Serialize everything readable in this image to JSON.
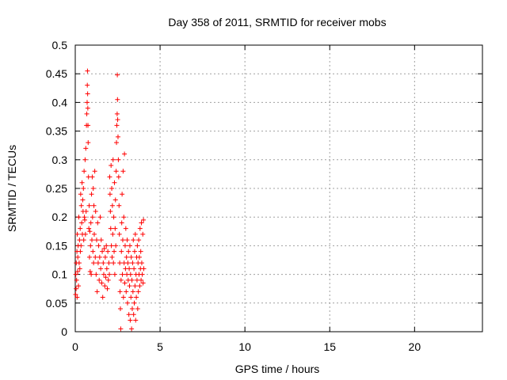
{
  "chart_data": {
    "type": "scatter",
    "title": "Day 358 of 2011, SRMTID for receiver mobs",
    "xlabel": "GPS time / hours",
    "ylabel": "SRMTID / TECUs",
    "xlim": [
      0,
      24
    ],
    "ylim": [
      0,
      0.5
    ],
    "x_ticks": [
      0,
      5,
      10,
      15,
      20
    ],
    "y_ticks": [
      0,
      0.05,
      0.1,
      0.15,
      0.2,
      0.25,
      0.3,
      0.35,
      0.4,
      0.45,
      0.5
    ],
    "x_tick_labels": [
      "0",
      "5",
      "10",
      "15",
      "20"
    ],
    "y_tick_labels": [
      "0",
      "0.05",
      "0.1",
      "0.15",
      "0.2",
      "0.25",
      "0.3",
      "0.35",
      "0.4",
      "0.45",
      "0.5"
    ],
    "grid": true,
    "marker": "+",
    "color": "#ff0000",
    "series": [
      {
        "points": [
          [
            0.02,
            0.065
          ],
          [
            0.03,
            0.1
          ],
          [
            0.05,
            0.075
          ],
          [
            0.06,
            0.12
          ],
          [
            0.08,
            0.09
          ],
          [
            0.1,
            0.14
          ],
          [
            0.11,
            0.06
          ],
          [
            0.12,
            0.17
          ],
          [
            0.14,
            0.105
          ],
          [
            0.15,
            0.13
          ],
          [
            0.17,
            0.15
          ],
          [
            0.19,
            0.08
          ],
          [
            0.21,
            0.2
          ],
          [
            0.23,
            0.12
          ],
          [
            0.25,
            0.16
          ],
          [
            0.27,
            0.11
          ],
          [
            0.29,
            0.18
          ],
          [
            0.3,
            0.14
          ],
          [
            0.32,
            0.24
          ],
          [
            0.34,
            0.15
          ],
          [
            0.36,
            0.22
          ],
          [
            0.38,
            0.19
          ],
          [
            0.4,
            0.26
          ],
          [
            0.42,
            0.17
          ],
          [
            0.44,
            0.23
          ],
          [
            0.46,
            0.21
          ],
          [
            0.48,
            0.25
          ],
          [
            0.5,
            0.16
          ],
          [
            0.52,
            0.28
          ],
          [
            0.54,
            0.2
          ],
          [
            0.56,
            0.195
          ],
          [
            0.58,
            0.3
          ],
          [
            0.6,
            0.17
          ],
          [
            0.62,
            0.32
          ],
          [
            0.64,
            0.21
          ],
          [
            0.66,
            0.36
          ],
          [
            0.68,
            0.38
          ],
          [
            0.7,
            0.4
          ],
          [
            0.71,
            0.43
          ],
          [
            0.72,
            0.455
          ],
          [
            0.73,
            0.415
          ],
          [
            0.74,
            0.39
          ],
          [
            0.75,
            0.36
          ],
          [
            0.76,
            0.33
          ],
          [
            0.78,
            0.27
          ],
          [
            0.8,
            0.18
          ],
          [
            0.82,
            0.22
          ],
          [
            0.84,
            0.13
          ],
          [
            0.86,
            0.175
          ],
          [
            0.88,
            0.105
          ],
          [
            0.9,
            0.15
          ],
          [
            0.92,
            0.19
          ],
          [
            0.94,
            0.1
          ],
          [
            0.96,
            0.24
          ],
          [
            0.98,
            0.16
          ],
          [
            1.0,
            0.27
          ],
          [
            1.02,
            0.2
          ],
          [
            1.04,
            0.14
          ],
          [
            1.06,
            0.25
          ],
          [
            1.08,
            0.12
          ],
          [
            1.1,
            0.22
          ],
          [
            1.12,
            0.17
          ],
          [
            1.15,
            0.28
          ],
          [
            1.18,
            0.13
          ],
          [
            1.2,
            0.21
          ],
          [
            1.23,
            0.1
          ],
          [
            1.26,
            0.16
          ],
          [
            1.29,
            0.07
          ],
          [
            1.32,
            0.19
          ],
          [
            1.35,
            0.12
          ],
          [
            1.38,
            0.15
          ],
          [
            1.41,
            0.09
          ],
          [
            1.44,
            0.13
          ],
          [
            1.47,
            0.2
          ],
          [
            1.5,
            0.11
          ],
          [
            1.53,
            0.16
          ],
          [
            1.56,
            0.085
          ],
          [
            1.59,
            0.14
          ],
          [
            1.62,
            0.06
          ],
          [
            1.65,
            0.12
          ],
          [
            1.68,
            0.1
          ],
          [
            1.71,
            0.145
          ],
          [
            1.74,
            0.08
          ],
          [
            1.77,
            0.13
          ],
          [
            1.8,
            0.095
          ],
          [
            1.83,
            0.15
          ],
          [
            1.86,
            0.11
          ],
          [
            1.89,
            0.075
          ],
          [
            1.92,
            0.14
          ],
          [
            1.95,
            0.09
          ],
          [
            1.98,
            0.12
          ],
          [
            2.01,
            0.1
          ],
          [
            2.03,
            0.27
          ],
          [
            2.05,
            0.24
          ],
          [
            2.07,
            0.21
          ],
          [
            2.09,
            0.18
          ],
          [
            2.11,
            0.29
          ],
          [
            2.13,
            0.15
          ],
          [
            2.15,
            0.25
          ],
          [
            2.17,
            0.13
          ],
          [
            2.19,
            0.22
          ],
          [
            2.21,
            0.17
          ],
          [
            2.23,
            0.3
          ],
          [
            2.25,
            0.12
          ],
          [
            2.27,
            0.2
          ],
          [
            2.29,
            0.14
          ],
          [
            2.31,
            0.26
          ],
          [
            2.33,
            0.1
          ],
          [
            2.35,
            0.18
          ],
          [
            2.37,
            0.23
          ],
          [
            2.39,
            0.15
          ],
          [
            2.41,
            0.28
          ],
          [
            2.43,
            0.33
          ],
          [
            2.45,
            0.36
          ],
          [
            2.47,
            0.38
          ],
          [
            2.48,
            0.448
          ],
          [
            2.49,
            0.405
          ],
          [
            2.5,
            0.37
          ],
          [
            2.52,
            0.34
          ],
          [
            2.54,
            0.3
          ],
          [
            2.56,
            0.27
          ],
          [
            2.58,
            0.22
          ],
          [
            2.6,
            0.17
          ],
          [
            2.62,
            0.12
          ],
          [
            2.64,
            0.07
          ],
          [
            2.66,
            0.04
          ],
          [
            2.68,
            0.005
          ],
          [
            2.7,
            0.09
          ],
          [
            2.72,
            0.14
          ],
          [
            2.74,
            0.19
          ],
          [
            2.76,
            0.24
          ],
          [
            2.78,
            0.1
          ],
          [
            2.8,
            0.16
          ],
          [
            2.82,
            0.28
          ],
          [
            2.84,
            0.06
          ],
          [
            2.86,
            0.2
          ],
          [
            2.88,
            0.12
          ],
          [
            2.9,
            0.31
          ],
          [
            2.92,
            0.085
          ],
          [
            2.94,
            0.15
          ],
          [
            2.96,
            0.11
          ],
          [
            2.98,
            0.18
          ],
          [
            3.0,
            0.07
          ],
          [
            3.02,
            0.13
          ],
          [
            3.04,
            0.1
          ],
          [
            3.06,
            0.16
          ],
          [
            3.08,
            0.05
          ],
          [
            3.1,
            0.12
          ],
          [
            3.12,
            0.09
          ],
          [
            3.14,
            0.14
          ],
          [
            3.16,
            0.03
          ],
          [
            3.18,
            0.11
          ],
          [
            3.2,
            0.08
          ],
          [
            3.22,
            0.15
          ],
          [
            3.24,
            0.02
          ],
          [
            3.26,
            0.1
          ],
          [
            3.28,
            0.06
          ],
          [
            3.3,
            0.13
          ],
          [
            3.32,
            0.005
          ],
          [
            3.34,
            0.09
          ],
          [
            3.36,
            0.04
          ],
          [
            3.38,
            0.12
          ],
          [
            3.4,
            0.07
          ],
          [
            3.42,
            0.16
          ],
          [
            3.44,
            0.03
          ],
          [
            3.46,
            0.11
          ],
          [
            3.48,
            0.05
          ],
          [
            3.5,
            0.14
          ],
          [
            3.52,
            0.08
          ],
          [
            3.54,
            0.17
          ],
          [
            3.56,
            0.02
          ],
          [
            3.58,
            0.1
          ],
          [
            3.6,
            0.06
          ],
          [
            3.62,
            0.13
          ],
          [
            3.64,
            0.09
          ],
          [
            3.66,
            0.15
          ],
          [
            3.68,
            0.04
          ],
          [
            3.7,
            0.12
          ],
          [
            3.72,
            0.07
          ],
          [
            3.74,
            0.16
          ],
          [
            3.76,
            0.1
          ],
          [
            3.78,
            0.13
          ],
          [
            3.8,
            0.08
          ],
          [
            3.82,
            0.18
          ],
          [
            3.84,
            0.11
          ],
          [
            3.86,
            0.14
          ],
          [
            3.88,
            0.09
          ],
          [
            3.9,
            0.19
          ],
          [
            3.92,
            0.12
          ],
          [
            3.95,
            0.1
          ],
          [
            3.98,
            0.17
          ],
          [
            4.0,
            0.085
          ],
          [
            4.02,
            0.195
          ],
          [
            4.04,
            0.11
          ]
        ]
      }
    ]
  }
}
